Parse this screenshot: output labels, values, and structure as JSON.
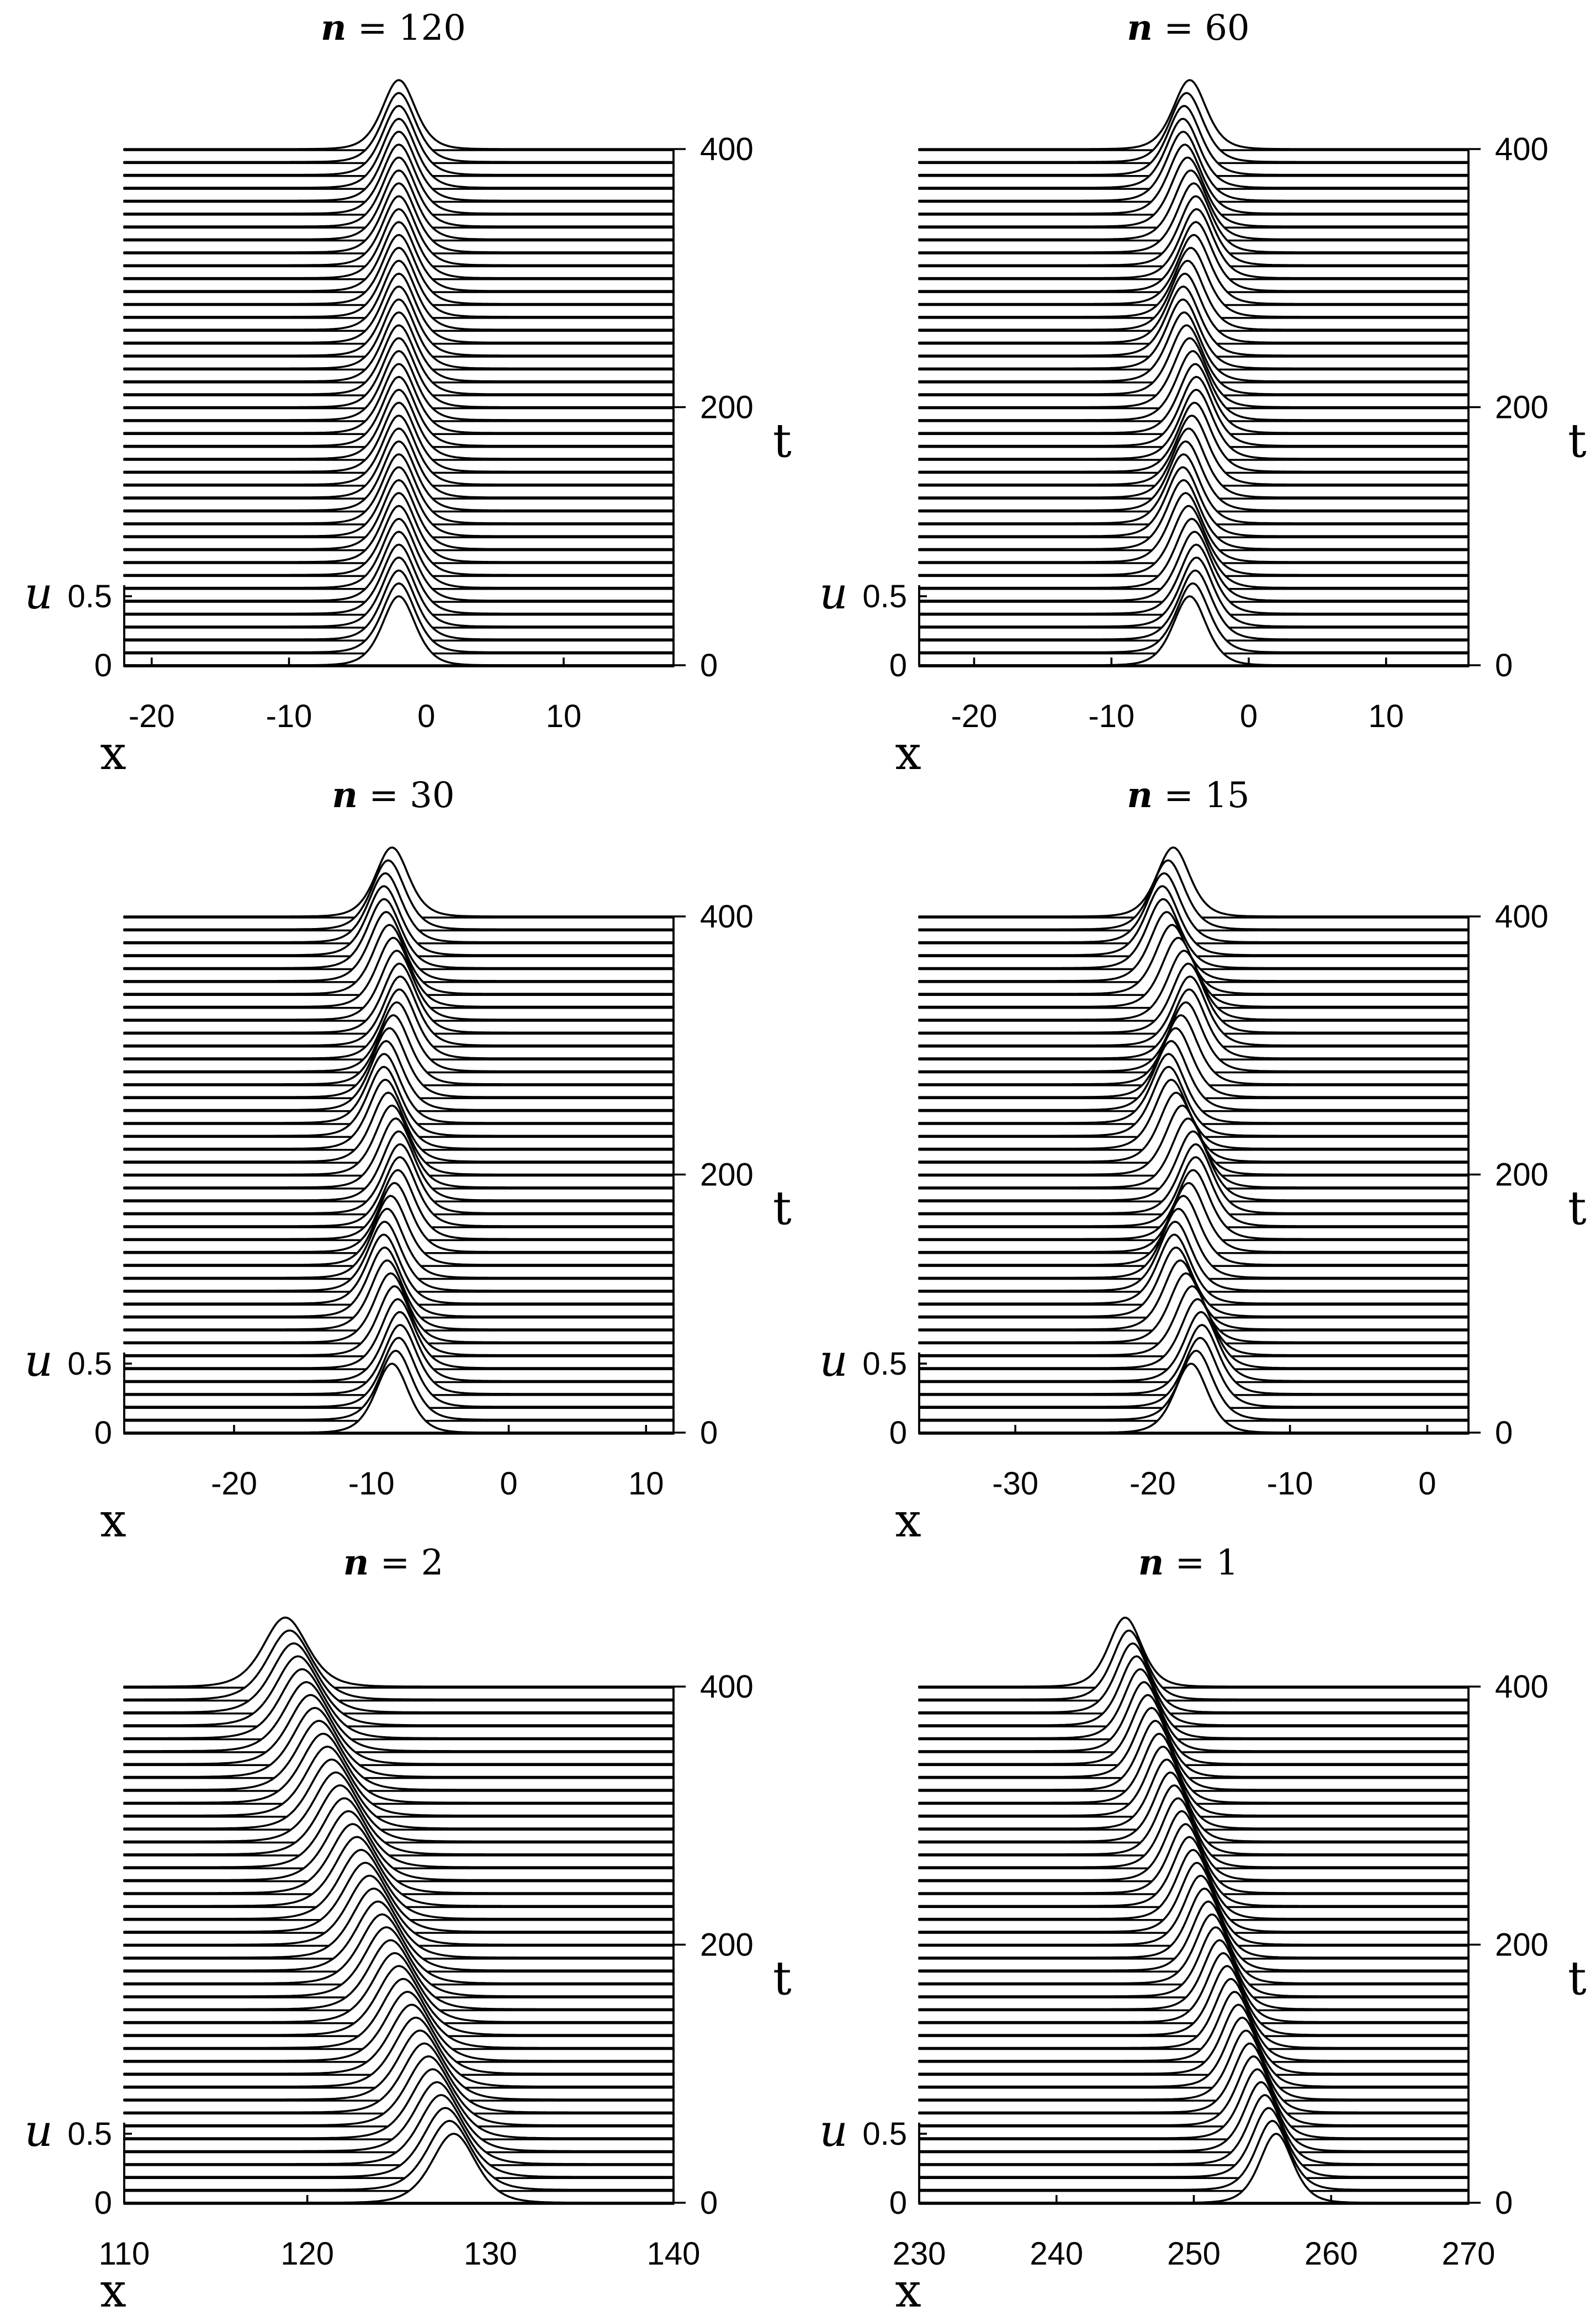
{
  "figure": {
    "axis_x_symbol": "x",
    "axis_t_symbol": "t",
    "axis_u_symbol": "u",
    "t_ticks": [
      0,
      200,
      400
    ],
    "u_ticks": [
      0,
      0.5
    ]
  },
  "chart_data": [
    {
      "type": "waterfall-line",
      "title_var": "n",
      "title_val": "120",
      "title": "n = 120",
      "xlabel": "x",
      "ylabel": "u",
      "zlabel": "t",
      "xlim": [
        -22,
        18
      ],
      "xticks": [
        -20,
        -10,
        0,
        10
      ],
      "tlim": [
        0,
        400
      ],
      "tticks": [
        0,
        200,
        400
      ],
      "t_step": 10,
      "ulim": [
        0,
        0.5
      ],
      "pulse": {
        "amplitude": 0.5,
        "width": 1.6,
        "center_start": -2,
        "center_end": -2,
        "wobble": 0
      }
    },
    {
      "type": "waterfall-line",
      "title_var": "n",
      "title_val": "60",
      "title": "n = 60",
      "xlabel": "x",
      "ylabel": "u",
      "zlabel": "t",
      "xlim": [
        -24,
        16
      ],
      "xticks": [
        -20,
        -10,
        0,
        10
      ],
      "tlim": [
        0,
        400
      ],
      "tticks": [
        0,
        200,
        400
      ],
      "t_step": 10,
      "ulim": [
        0,
        0.5
      ],
      "pulse": {
        "amplitude": 0.5,
        "width": 1.6,
        "center_start": -4.3,
        "center_end": -4.3,
        "wobble": 0.5
      }
    },
    {
      "type": "waterfall-line",
      "title_var": "n",
      "title_val": "30",
      "title": "n = 30",
      "xlabel": "x",
      "ylabel": "u",
      "zlabel": "t",
      "xlim": [
        -28,
        12
      ],
      "xticks": [
        -20,
        -10,
        0,
        10
      ],
      "tlim": [
        0,
        400
      ],
      "tticks": [
        0,
        200,
        400
      ],
      "t_step": 10,
      "ulim": [
        0,
        0.5
      ],
      "pulse": {
        "amplitude": 0.5,
        "width": 1.6,
        "center_start": -8.5,
        "center_end": -8.5,
        "wobble": 0.6
      }
    },
    {
      "type": "waterfall-line",
      "title_var": "n",
      "title_val": "15",
      "title": "n = 15",
      "xlabel": "x",
      "ylabel": "u",
      "zlabel": "t",
      "xlim": [
        -37,
        3
      ],
      "xticks": [
        -30,
        -20,
        -10,
        0
      ],
      "tlim": [
        0,
        400
      ],
      "tticks": [
        0,
        200,
        400
      ],
      "t_step": 10,
      "ulim": [
        0,
        0.5
      ],
      "pulse": {
        "amplitude": 0.5,
        "width": 1.6,
        "center_start": -17.2,
        "center_end": -18.5,
        "wobble": 0.9
      }
    },
    {
      "type": "waterfall-line",
      "title_var": "n",
      "title_val": "2",
      "title": "n = 2",
      "xlabel": "x",
      "ylabel": "u",
      "zlabel": "t",
      "xlim": [
        110,
        140
      ],
      "xticks": [
        110,
        120,
        130,
        140
      ],
      "tlim": [
        0,
        400
      ],
      "tticks": [
        0,
        200,
        400
      ],
      "t_step": 10,
      "ulim": [
        0,
        0.5
      ],
      "pulse": {
        "amplitude": 0.5,
        "width": 1.6,
        "center_start": 128,
        "center_end": 118.8,
        "wobble": 0
      }
    },
    {
      "type": "waterfall-line",
      "title_var": "n",
      "title_val": "1",
      "title": "n = 1",
      "xlabel": "x",
      "ylabel": "u",
      "zlabel": "t",
      "xlim": [
        230,
        270
      ],
      "xticks": [
        230,
        240,
        250,
        260,
        270
      ],
      "tlim": [
        0,
        400
      ],
      "tticks": [
        0,
        200,
        400
      ],
      "t_step": 10,
      "ulim": [
        0,
        0.5
      ],
      "pulse": {
        "amplitude": 0.5,
        "width": 1.6,
        "center_start": 256,
        "center_end": 245,
        "wobble": 0
      }
    }
  ]
}
